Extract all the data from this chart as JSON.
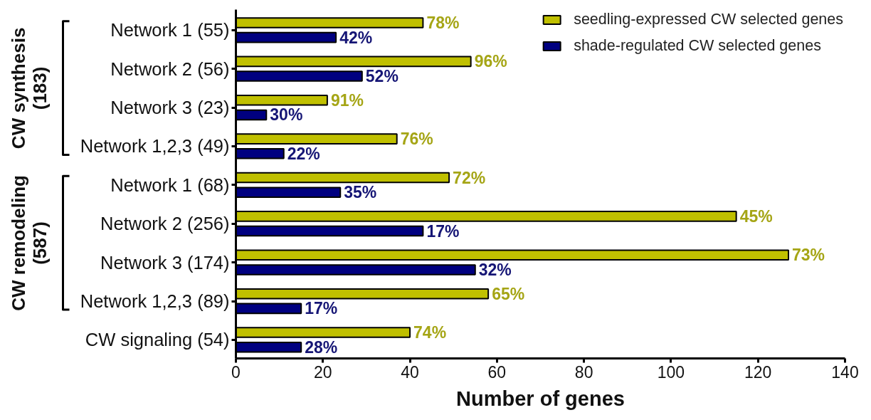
{
  "chart_data": {
    "type": "bar",
    "orientation": "horizontal",
    "xlabel": "Number of genes",
    "categories": [
      "Network 1 (55)",
      "Network 2 (56)",
      "Network 3 (23)",
      "Network 1,2,3 (49)",
      "Network 1 (68)",
      "Network 2 (256)",
      "Network 3 (174)",
      "Network 1,2,3 (89)",
      "CW signaling (54)"
    ],
    "series": [
      {
        "name": "seedling-expressed CW selected genes",
        "color": "#c0c000",
        "values": [
          43,
          54,
          21,
          37,
          49,
          115,
          127,
          58,
          40
        ]
      },
      {
        "name": "shade-regulated CW selected genes",
        "color": "#000080",
        "values": [
          23,
          29,
          7,
          11,
          24,
          43,
          55,
          15,
          15
        ]
      }
    ],
    "xlim": [
      0,
      140
    ],
    "xticks": [
      0,
      20,
      40,
      60,
      80,
      100,
      120,
      140
    ],
    "legend": "top right",
    "annotations": [
      "CW synthesis\n(183)",
      "CW remodeling\n(587)",
      {
        "text": "78%",
        "x": 43,
        "y": "Network 1 (55)"
      },
      {
        "text": "42%",
        "x": 23,
        "y": "Network 1 (55)"
      },
      {
        "text": "96%",
        "x": 54,
        "y": "Network 2 (56)"
      },
      {
        "text": "52%",
        "x": 29,
        "y": "Network 2 (56)"
      },
      {
        "text": "91%",
        "x": 21,
        "y": "Network 3 (23)"
      },
      {
        "text": "30%",
        "x": 7,
        "y": "Network 3 (23)"
      },
      {
        "text": "76%",
        "x": 37,
        "y": "Network 1,2,3 (49)"
      },
      {
        "text": "22%",
        "x": 11,
        "y": "Network 1,2,3 (49)"
      },
      {
        "text": "72%",
        "x": 49,
        "y": "Network 1 (68)"
      },
      {
        "text": "35%",
        "x": 24,
        "y": "Network 1 (68)"
      },
      {
        "text": "45%",
        "x": 115,
        "y": "Network 2 (256)"
      },
      {
        "text": "17%",
        "x": 43,
        "y": "Network 2 (256)"
      },
      {
        "text": "73%",
        "x": 127,
        "y": "Network 3 (174)"
      },
      {
        "text": "32%",
        "x": 55,
        "y": "Network 3 (174)"
      },
      {
        "text": "65%",
        "x": 58,
        "y": "Network 1,2,3 (89)"
      },
      {
        "text": "17%",
        "x": 15,
        "y": "Network 1,2,3 (89)"
      },
      {
        "text": "74%",
        "x": 40,
        "y": "CW signaling (54)"
      },
      {
        "text": "28%",
        "x": 15,
        "y": "CW signaling (54)"
      }
    ]
  }
}
